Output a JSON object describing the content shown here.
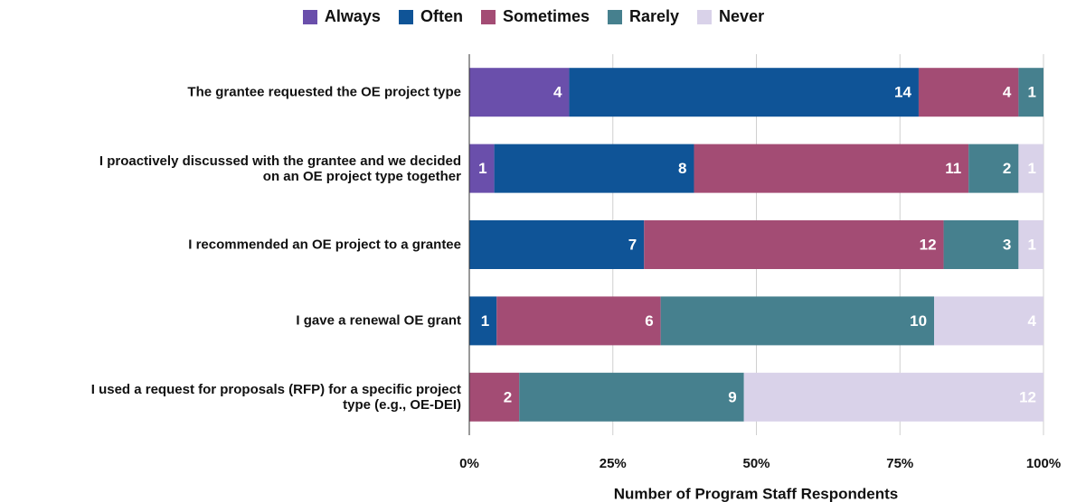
{
  "chart_data": {
    "type": "stacked_bar_100",
    "x_label": "Number of Program Staff Respondents",
    "categories": [
      "The grantee requested the OE project type",
      "I proactively discussed with the grantee and we decided\non an OE project type together",
      "I recommended an OE project to a grantee",
      "I gave a renewal OE grant",
      "I used a request for proposals (RFP) for a specific project\ntype (e.g., OE-DEI)"
    ],
    "series": [
      {
        "name": "Always",
        "color": "#6a4fab",
        "values": [
          4,
          1,
          null,
          null,
          null
        ]
      },
      {
        "name": "Often",
        "color": "#0f5497",
        "values": [
          14,
          8,
          7,
          1,
          null
        ]
      },
      {
        "name": "Sometimes",
        "color": "#a34c74",
        "values": [
          4,
          11,
          12,
          6,
          2
        ]
      },
      {
        "name": "Rarely",
        "color": "#46808e",
        "values": [
          1,
          2,
          3,
          10,
          9
        ]
      },
      {
        "name": "Never",
        "color": "#d9d2e9",
        "values": [
          null,
          1,
          1,
          4,
          12
        ]
      }
    ],
    "xlim": [
      0,
      100
    ],
    "xticks": [
      {
        "value": 0,
        "label": "0%"
      },
      {
        "value": 25,
        "label": "25%"
      },
      {
        "value": 50,
        "label": "50%"
      },
      {
        "value": 75,
        "label": "75%"
      },
      {
        "value": 100,
        "label": "100%"
      }
    ],
    "grid": true,
    "legend": "top"
  }
}
